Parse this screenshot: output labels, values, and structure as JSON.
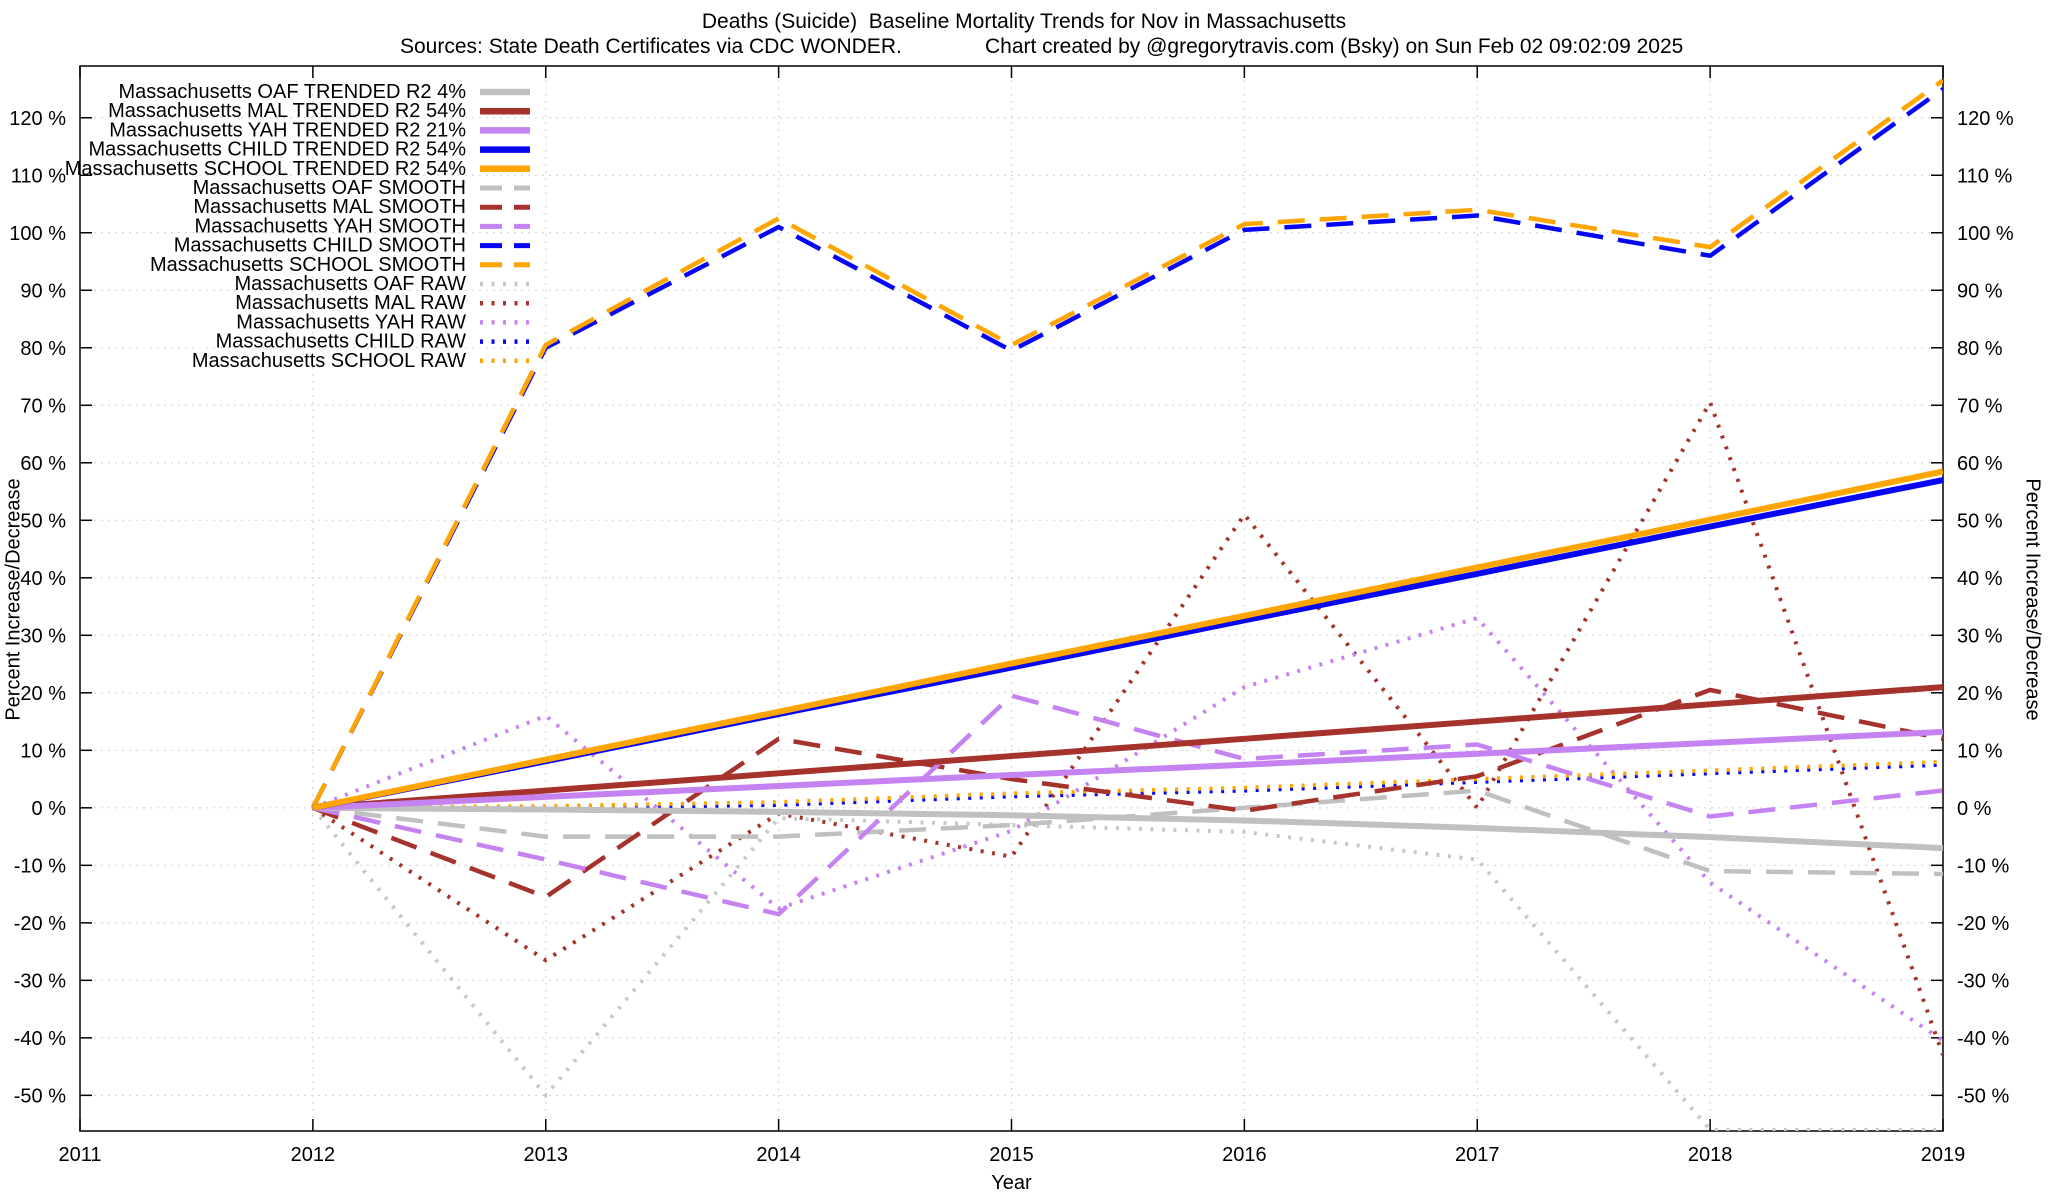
{
  "title": "Deaths (Suicide)  Baseline Mortality Trends for Nov in Massachusetts",
  "subtitle_left": "Sources: State Death Certificates via CDC WONDER.",
  "subtitle_right": "Chart created by @gregorytravis.com (Bsky) on Sun Feb 02 09:02:09 2025",
  "chart_data": {
    "type": "line",
    "title": "Deaths (Suicide)  Baseline Mortality Trends for Nov in Massachusetts",
    "xlabel": "Year",
    "ylabel_left": "Percent Increase/Decrease",
    "ylabel_right": "Percent Increase/Decrease",
    "xlim": [
      2011,
      2019
    ],
    "ylim": [
      -56.2,
      129
    ],
    "grid": true,
    "legend_position": "top-left",
    "x_ticks": [
      2011,
      2012,
      2013,
      2014,
      2015,
      2016,
      2017,
      2018,
      2019
    ],
    "x_tick_labels": [
      "2011",
      "2012",
      "2013",
      "2014",
      "2015",
      "2016",
      "2017",
      "2018",
      "2019"
    ],
    "y_ticks": [
      -50,
      -40,
      -30,
      -20,
      -10,
      0,
      10,
      20,
      30,
      40,
      50,
      60,
      70,
      80,
      90,
      100,
      110,
      120
    ],
    "y_tick_labels": [
      "-50 %",
      "-40 %",
      "-30 %",
      "-20 %",
      "-10 %",
      "0 %",
      "10 %",
      "20 %",
      "30 %",
      "40 %",
      "50 %",
      "60 %",
      "70 %",
      "80 %",
      "90 %",
      "100 %",
      "110 %",
      "120 %"
    ],
    "x": [
      2012,
      2013,
      2014,
      2015,
      2016,
      2017,
      2018,
      2019
    ],
    "series": [
      {
        "name": "Massachusetts OAF TRENDED R2   4%",
        "style": "solid",
        "color": "#c0c0c0",
        "values": [
          0,
          -0.3,
          -0.7,
          -1.3,
          -2.2,
          -3.5,
          -5.1,
          -7
        ]
      },
      {
        "name": "Massachusetts MAL TRENDED R2  54%",
        "style": "solid",
        "color": "#a5322b",
        "values": [
          0,
          3,
          6,
          9,
          12,
          15,
          18,
          21
        ]
      },
      {
        "name": "Massachusetts YAH TRENDED R2  21%",
        "style": "solid",
        "color": "#c583f2",
        "values": [
          0,
          1.9,
          3.8,
          5.7,
          7.5,
          9.4,
          11.3,
          13.2
        ]
      },
      {
        "name": "Massachusetts CHILD TRENDED R2  54%",
        "style": "solid",
        "color": "#0606f5",
        "values": [
          0,
          8.1,
          16.3,
          24.4,
          32.6,
          40.7,
          48.9,
          57
        ]
      },
      {
        "name": "Massachusetts SCHOOL TRENDED R2  54%",
        "style": "solid",
        "color": "#ffa500",
        "values": [
          0,
          8.4,
          16.7,
          25.1,
          33.4,
          41.8,
          50.1,
          58.5
        ]
      },
      {
        "name": "Massachusetts OAF SMOOTH",
        "style": "dashed",
        "color": "#c0c0c0",
        "values": [
          0,
          -5,
          -5,
          -3,
          0,
          3,
          -11,
          -11.5
        ]
      },
      {
        "name": "Massachusetts MAL SMOOTH",
        "style": "dashed",
        "color": "#a5322b",
        "values": [
          0,
          -15.5,
          12,
          5,
          -0.5,
          5.5,
          20.5,
          12
        ]
      },
      {
        "name": "Massachusetts YAH SMOOTH",
        "style": "dashed",
        "color": "#c583f2",
        "values": [
          0,
          -9,
          -18.5,
          19.5,
          8.5,
          11,
          -1.5,
          3
        ]
      },
      {
        "name": "Massachusetts CHILD SMOOTH",
        "style": "dashed",
        "color": "#0606f5",
        "values": [
          0,
          80,
          101,
          79.5,
          100.5,
          103,
          96,
          125
        ]
      },
      {
        "name": "Massachusetts SCHOOL SMOOTH",
        "style": "dashed",
        "color": "#ffa500",
        "values": [
          0,
          80.5,
          102.5,
          80.5,
          101.5,
          104,
          97.5,
          126.5
        ]
      },
      {
        "name": "Massachusetts OAF RAW",
        "style": "dotted",
        "color": "#c8c8c8",
        "values": [
          0,
          -50,
          -1.8,
          -3,
          -4.2,
          -9,
          -56,
          -56
        ]
      },
      {
        "name": "Massachusetts MAL RAW",
        "style": "dotted",
        "color": "#a5322b",
        "values": [
          0,
          -26.5,
          -1,
          -8.5,
          51,
          0,
          70.5,
          -43
        ]
      },
      {
        "name": "Massachusetts YAH RAW",
        "style": "dotted",
        "color": "#c583f2",
        "values": [
          0,
          16,
          -17.5,
          -4,
          21,
          33,
          -13,
          -40.5
        ]
      },
      {
        "name": "Massachusetts CHILD RAW",
        "style": "dotted",
        "color": "#0606f5",
        "values": [
          0,
          0,
          0.5,
          2,
          3,
          4.5,
          6,
          7.5
        ]
      },
      {
        "name": "Massachusetts SCHOOL RAW",
        "style": "dotted",
        "color": "#ffa500",
        "values": [
          0,
          0.3,
          1,
          2.5,
          3.5,
          5,
          6.5,
          8
        ]
      }
    ]
  }
}
